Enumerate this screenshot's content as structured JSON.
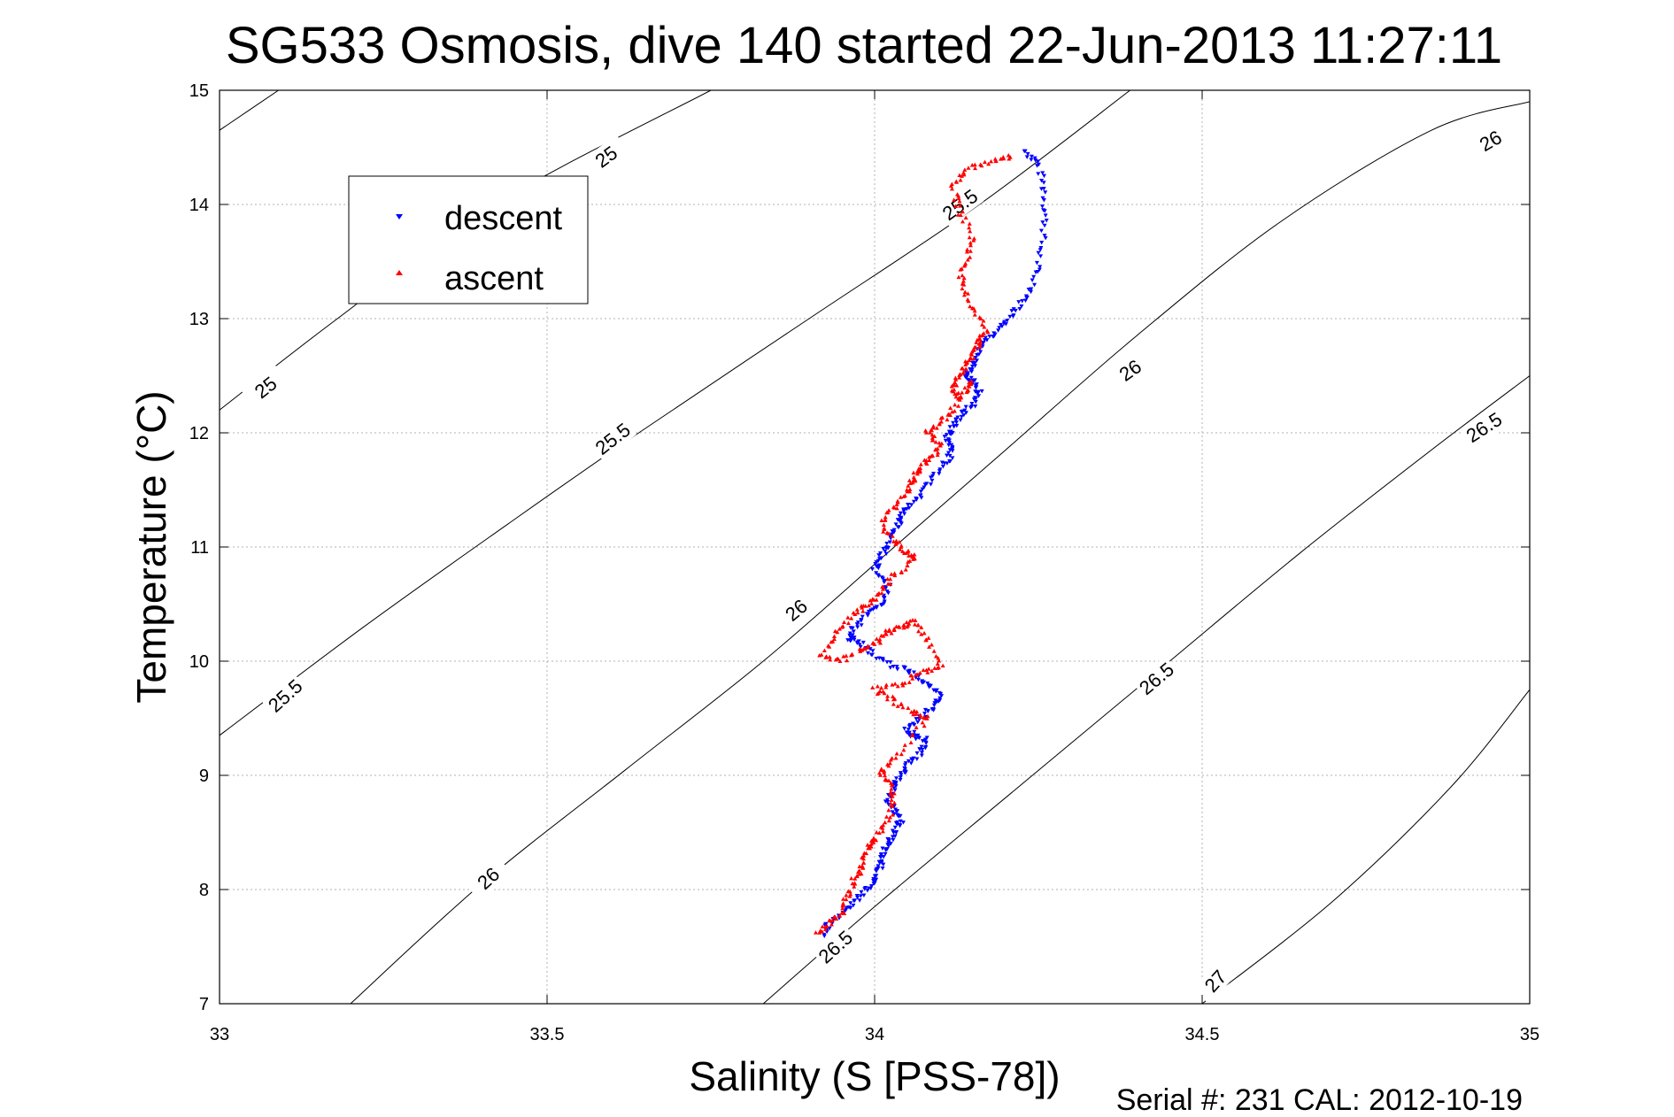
{
  "chart_data": {
    "type": "scatter",
    "title": "SG533 Osmosis, dive 140 started 22-Jun-2013 11:27:11",
    "xlabel": "Salinity (S [PSS-78])",
    "ylabel": "Temperature (°C)",
    "xlim": [
      33,
      35
    ],
    "ylim": [
      7,
      15
    ],
    "xticks": [
      "33",
      "33.5",
      "34",
      "34.5",
      "35"
    ],
    "yticks": [
      "7",
      "8",
      "9",
      "10",
      "11",
      "12",
      "13",
      "14",
      "15"
    ],
    "grid": true,
    "legend": {
      "placement": "top-left",
      "entries": [
        {
          "label": "descent",
          "color": "#0000ff",
          "marker": "triangle-down"
        },
        {
          "label": "ascent",
          "color": "#ff0000",
          "marker": "triangle-up"
        }
      ]
    },
    "density_contours": [
      {
        "level": "25",
        "points": [
          [
            33.0,
            14.65
          ],
          [
            33.09,
            15.0
          ]
        ]
      },
      {
        "level": "25",
        "points": [
          [
            33.0,
            12.2
          ],
          [
            33.18,
            13.0
          ],
          [
            33.42,
            14.0
          ],
          [
            33.75,
            15.0
          ]
        ]
      },
      {
        "level": "25.5",
        "points": [
          [
            33.0,
            9.35
          ],
          [
            33.22,
            10.3
          ],
          [
            33.44,
            11.2
          ],
          [
            33.64,
            12.0
          ],
          [
            33.9,
            13.0
          ],
          [
            34.16,
            14.0
          ],
          [
            34.39,
            15.0
          ]
        ]
      },
      {
        "level": "26",
        "points": [
          [
            33.2,
            7.0
          ],
          [
            33.4,
            8.05
          ],
          [
            33.62,
            9.05
          ],
          [
            33.83,
            10.0
          ],
          [
            34.02,
            10.95
          ],
          [
            34.2,
            11.85
          ],
          [
            34.4,
            12.85
          ],
          [
            34.62,
            13.85
          ],
          [
            34.85,
            14.65
          ],
          [
            35.0,
            14.9
          ]
        ]
      },
      {
        "level": "26.5",
        "points": [
          [
            33.83,
            7.0
          ],
          [
            34.0,
            7.85
          ],
          [
            34.22,
            8.9
          ],
          [
            34.44,
            9.95
          ],
          [
            34.65,
            10.95
          ],
          [
            34.85,
            11.85
          ],
          [
            35.0,
            12.5
          ]
        ]
      },
      {
        "level": "27",
        "points": [
          [
            34.5,
            7.0
          ],
          [
            34.7,
            7.9
          ],
          [
            34.88,
            8.9
          ],
          [
            35.0,
            9.75
          ]
        ]
      }
    ],
    "contour_labels": [
      {
        "text": "25",
        "x": 33.59,
        "y": 14.42,
        "angle": -36
      },
      {
        "text": "25",
        "x": 33.07,
        "y": 12.4,
        "angle": -38
      },
      {
        "text": "25.5",
        "x": 34.13,
        "y": 14.0,
        "angle": -36
      },
      {
        "text": "25.5",
        "x": 33.6,
        "y": 11.95,
        "angle": -38
      },
      {
        "text": "25.5",
        "x": 33.1,
        "y": 9.7,
        "angle": -42
      },
      {
        "text": "26",
        "x": 34.94,
        "y": 14.56,
        "angle": -30
      },
      {
        "text": "26",
        "x": 34.39,
        "y": 12.55,
        "angle": -35
      },
      {
        "text": "26",
        "x": 33.88,
        "y": 10.45,
        "angle": -40
      },
      {
        "text": "26",
        "x": 33.41,
        "y": 8.1,
        "angle": -42
      },
      {
        "text": "26.5",
        "x": 34.93,
        "y": 12.05,
        "angle": -33
      },
      {
        "text": "26.5",
        "x": 34.43,
        "y": 9.85,
        "angle": -40
      },
      {
        "text": "26.5",
        "x": 33.94,
        "y": 7.5,
        "angle": -42
      },
      {
        "text": "27",
        "x": 34.52,
        "y": 7.2,
        "angle": -48
      }
    ],
    "series": [
      {
        "name": "descent",
        "color": "#0000ff",
        "marker": "triangle-down",
        "x": [
          34.23,
          34.25,
          34.26,
          34.26,
          34.25,
          34.24,
          34.22,
          34.2,
          34.18,
          34.16,
          34.15,
          34.14,
          34.15,
          34.16,
          34.15,
          34.13,
          34.12,
          34.11,
          34.12,
          34.11,
          34.09,
          34.07,
          34.05,
          34.04,
          34.03,
          34.02,
          34.01,
          34.0,
          34.02,
          34.01,
          33.99,
          33.97,
          33.96,
          33.98,
          34.0,
          34.03,
          34.06,
          34.08,
          34.1,
          34.09,
          34.07,
          34.05,
          34.06,
          34.08,
          34.07,
          34.05,
          34.04,
          34.03,
          34.02,
          34.03,
          34.04,
          34.03,
          34.02,
          34.01,
          34.01,
          34.0,
          33.99,
          33.97,
          33.95,
          33.93,
          33.92
        ],
        "y": [
          14.47,
          14.35,
          14.1,
          13.8,
          13.5,
          13.25,
          13.1,
          12.95,
          12.85,
          12.75,
          12.6,
          12.5,
          12.45,
          12.35,
          12.25,
          12.15,
          12.05,
          11.95,
          11.85,
          11.75,
          11.6,
          11.45,
          11.35,
          11.25,
          11.15,
          11.0,
          10.9,
          10.8,
          10.65,
          10.5,
          10.4,
          10.3,
          10.2,
          10.15,
          10.05,
          9.95,
          9.9,
          9.8,
          9.7,
          9.6,
          9.5,
          9.4,
          9.35,
          9.3,
          9.2,
          9.1,
          9.0,
          8.9,
          8.8,
          8.7,
          8.6,
          8.5,
          8.4,
          8.3,
          8.2,
          8.1,
          8.0,
          7.9,
          7.8,
          7.7,
          7.6
        ]
      },
      {
        "name": "ascent",
        "color": "#ff0000",
        "marker": "triangle-up",
        "x": [
          34.21,
          34.18,
          34.14,
          34.12,
          34.13,
          34.15,
          34.14,
          34.13,
          34.15,
          34.17,
          34.16,
          34.15,
          34.14,
          34.13,
          34.12,
          34.13,
          34.15,
          34.12,
          34.1,
          34.08,
          34.1,
          34.09,
          34.07,
          34.06,
          34.05,
          34.03,
          34.01,
          34.03,
          34.05,
          34.06,
          34.03,
          34.01,
          33.99,
          33.97,
          33.94,
          33.92,
          33.95,
          33.98,
          34.0,
          34.02,
          34.04,
          34.06,
          34.08,
          34.1,
          34.07,
          34.04,
          34.0,
          34.03,
          34.06,
          34.08,
          34.04,
          34.01,
          34.02,
          34.03,
          34.02,
          34.0,
          33.99,
          33.98,
          33.97,
          33.96,
          33.95,
          33.93,
          33.91
        ],
        "y": [
          14.42,
          14.38,
          14.3,
          14.15,
          13.95,
          13.7,
          13.5,
          13.3,
          13.1,
          12.9,
          12.8,
          12.7,
          12.6,
          12.5,
          12.4,
          12.3,
          12.45,
          12.2,
          12.1,
          12.0,
          11.9,
          11.8,
          11.7,
          11.6,
          11.5,
          11.35,
          11.2,
          11.05,
          10.95,
          10.9,
          10.75,
          10.6,
          10.5,
          10.4,
          10.25,
          10.05,
          10.0,
          10.1,
          10.15,
          10.25,
          10.3,
          10.35,
          10.2,
          9.95,
          9.9,
          9.8,
          9.75,
          9.65,
          9.55,
          9.5,
          9.2,
          9.05,
          8.95,
          8.8,
          8.6,
          8.45,
          8.35,
          8.2,
          8.1,
          7.95,
          7.8,
          7.7,
          7.6
        ]
      }
    ]
  },
  "footer": {
    "serial_text": "Serial #: 231  CAL: 2012-10-19"
  }
}
